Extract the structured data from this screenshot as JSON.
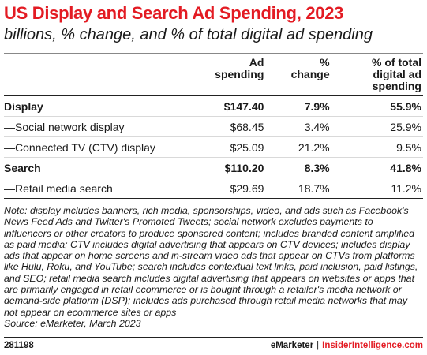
{
  "title": "US Display and Search Ad Spending, 2023",
  "subtitle": "billions, % change, and % of total digital ad spending",
  "chart_data": {
    "type": "table",
    "columns": [
      "",
      "Ad spending",
      "% change",
      "% of total digital ad spending"
    ],
    "column_lines": [
      [
        ""
      ],
      [
        "Ad",
        "spending"
      ],
      [
        "%",
        "change"
      ],
      [
        "% of total",
        "digital ad",
        "spending"
      ]
    ],
    "rows": [
      {
        "label": "Display",
        "ad_spending": "$147.40",
        "pct_change": "7.9%",
        "pct_total": "55.9%",
        "bold": true
      },
      {
        "label": "—Social network display",
        "ad_spending": "$68.45",
        "pct_change": "3.4%",
        "pct_total": "25.9%",
        "bold": false
      },
      {
        "label": "—Connected TV (CTV) display",
        "ad_spending": "$25.09",
        "pct_change": "21.2%",
        "pct_total": "9.5%",
        "bold": false
      },
      {
        "label": "Search",
        "ad_spending": "$110.20",
        "pct_change": "8.3%",
        "pct_total": "41.8%",
        "bold": true
      },
      {
        "label": "—Retail media search",
        "ad_spending": "$29.69",
        "pct_change": "18.7%",
        "pct_total": "11.2%",
        "bold": false
      }
    ]
  },
  "note": "Note: display includes banners, rich media, sponsorships, video, and ads such as Facebook's News Feed Ads and Twitter's Promoted Tweets; social network excludes payments to influencers or other creators to produce sponsored content; includes branded content amplified as paid media; CTV includes digital advertising that appears on CTV devices; includes display ads that appear on home screens and in-stream video ads that appear on CTVs from platforms like Hulu, Roku, and YouTube; search includes contextual text links, paid inclusion, paid listings, and SEO; retail media search includes digital advertising that appears on websites or apps that are primarily engaged in retail ecommerce or is bought through a retailer's media network or demand-side platform (DSP); includes ads purchased through retail media networks that may not appear on ecommerce sites or apps",
  "source": "Source: eMarketer, March 2023",
  "footer": {
    "chart_id": "281198",
    "brand": "eMarketer",
    "separator": "|",
    "site": "InsiderIntelligence.com"
  },
  "colors": {
    "title": "#e31b23",
    "text": "#1a1a1a",
    "rule": "#222222",
    "row_divider": "#d9d9d9"
  }
}
